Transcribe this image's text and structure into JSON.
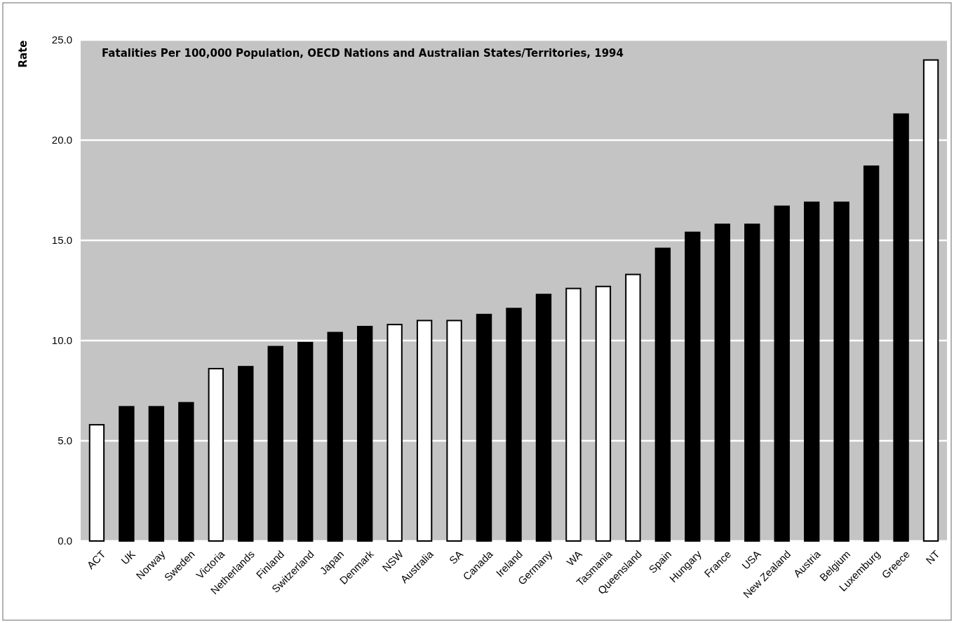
{
  "chart_data": {
    "type": "bar",
    "title": "Fatalities Per 100,000 Population, OECD Nations and Australian States/Territories, 1994",
    "ylabel": "Rate",
    "categories": [
      "ACT",
      "UK",
      "Norway",
      "Sweden",
      "Victoria",
      "Netherlands",
      "Finland",
      "Switzerland",
      "Japan",
      "Denmark",
      "NSW",
      "Australia",
      "SA",
      "Canada",
      "Ireland",
      "Germany",
      "WA",
      "Tasmania",
      "Queensland",
      "Spain",
      "Hungary",
      "France",
      "USA",
      "New Zealand",
      "Austria",
      "Belgium",
      "Luxemburg",
      "Greece",
      "NT"
    ],
    "values": [
      5.8,
      6.7,
      6.7,
      6.9,
      8.6,
      8.7,
      9.7,
      9.9,
      10.4,
      10.7,
      10.8,
      11.0,
      11.0,
      11.3,
      11.6,
      12.3,
      12.6,
      12.7,
      13.3,
      14.6,
      15.4,
      15.8,
      15.8,
      16.7,
      16.9,
      16.9,
      18.7,
      21.3,
      24.0
    ],
    "colors": [
      "#ffffff",
      "#000000",
      "#000000",
      "#000000",
      "#ffffff",
      "#000000",
      "#000000",
      "#000000",
      "#000000",
      "#000000",
      "#ffffff",
      "#ffffff",
      "#ffffff",
      "#000000",
      "#000000",
      "#000000",
      "#ffffff",
      "#ffffff",
      "#ffffff",
      "#000000",
      "#000000",
      "#000000",
      "#000000",
      "#000000",
      "#000000",
      "#000000",
      "#000000",
      "#000000",
      "#ffffff"
    ],
    "ylim": [
      0,
      25
    ],
    "yticks": [
      {
        "value": 0,
        "label": "0.0"
      },
      {
        "value": 5,
        "label": "5.0"
      },
      {
        "value": 10,
        "label": "10.0"
      },
      {
        "value": 15,
        "label": "15.0"
      },
      {
        "value": 20,
        "label": "20.0"
      },
      {
        "value": 25,
        "label": "25.0"
      }
    ],
    "grid": "y"
  }
}
